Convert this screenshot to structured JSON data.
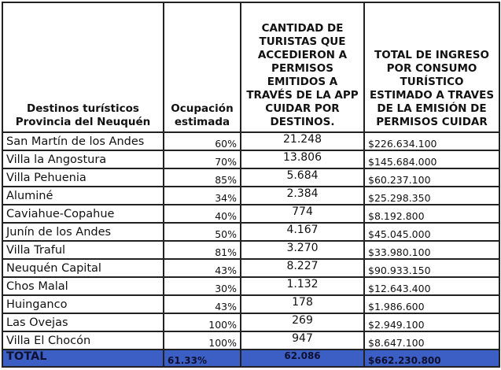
{
  "headers": [
    "Destinos turísticos Provincia del Neuquén",
    "Ocupación estimada",
    "CANTIDAD DE TURISTAS QUE ACCEDIERON A PERMISOS EMITIDOS A TRAVÉS DE LA APP CUIDAR POR DESTINOS.",
    "TOTAL DE INGRESO POR CONSUMO TURÍSTICO ESTIMADO A TRAVES DE LA EMISIÓN DE PERMISOS CUIDAR"
  ],
  "rows": [
    [
      "San Martín de los Andes",
      "60%",
      "21.248",
      "$226.634.100"
    ],
    [
      "Villa la Angostura",
      "70%",
      "13.806",
      "$145.684.000"
    ],
    [
      "Villa Pehuenia",
      "85%",
      "5.684",
      "$60.237.100"
    ],
    [
      "Aluminé",
      "34%",
      "2.384",
      "$25.298.350"
    ],
    [
      "Caviahue-Copahue",
      "40%",
      "774",
      "$8.192.800"
    ],
    [
      "Junín de los Andes",
      "50%",
      "4.167",
      "$45.045.000"
    ],
    [
      "Villa Traful",
      "81%",
      "3.270",
      "$33.980.100"
    ],
    [
      "Neuquén Capital",
      "43%",
      "8.227",
      "$90.933.150"
    ],
    [
      "Chos Malal",
      "30%",
      "1.132",
      "$12.643.400"
    ],
    [
      "Huinganco",
      "43%",
      "178",
      "$1.986.600"
    ],
    [
      "Las Ovejas",
      "100%",
      "269",
      "$2.949.100"
    ],
    [
      "Villa El Chocón",
      "100%",
      "947",
      "$8.647.100"
    ]
  ],
  "total": [
    "TOTAL",
    "61.33%",
    "62.086",
    "$662.230.800"
  ],
  "colors": {
    "total_row": "#3b5fc4"
  }
}
